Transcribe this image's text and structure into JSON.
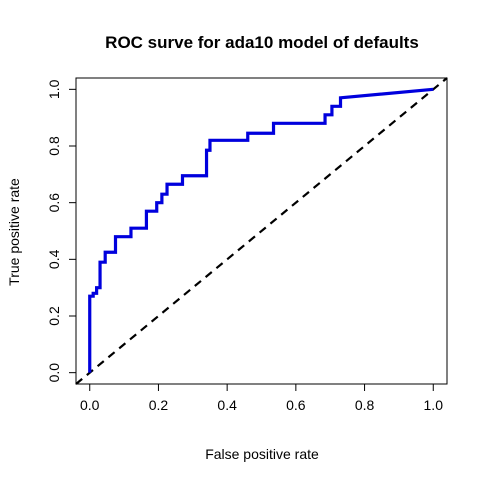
{
  "chart_data": {
    "type": "line",
    "title": "ROC surve for ada10 model of defaults",
    "xlabel": "False positive rate",
    "ylabel": "True positive rate",
    "xlim": [
      -0.04,
      1.04
    ],
    "ylim": [
      -0.04,
      1.04
    ],
    "x_ticks": [
      0.0,
      0.2,
      0.4,
      0.6,
      0.8,
      1.0
    ],
    "y_ticks": [
      0.0,
      0.2,
      0.4,
      0.6,
      0.8,
      1.0
    ],
    "x_tick_labels": [
      "0.0",
      "0.2",
      "0.4",
      "0.6",
      "0.8",
      "1.0"
    ],
    "y_tick_labels": [
      "0.0",
      "0.2",
      "0.4",
      "0.6",
      "0.8",
      "1.0"
    ],
    "grid": false,
    "series": [
      {
        "color": "#0000dd",
        "style": "solid",
        "x": [
          0,
          0,
          0.01,
          0.01,
          0.02,
          0.02,
          0.03,
          0.03,
          0.045,
          0.045,
          0.075,
          0.075,
          0.12,
          0.12,
          0.165,
          0.165,
          0.195,
          0.195,
          0.21,
          0.21,
          0.225,
          0.225,
          0.27,
          0.27,
          0.34,
          0.34,
          0.35,
          0.35,
          0.46,
          0.46,
          0.535,
          0.535,
          0.685,
          0.685,
          0.705,
          0.705,
          0.73,
          0.73,
          1.0
        ],
        "y": [
          0,
          0.27,
          0.27,
          0.28,
          0.28,
          0.3,
          0.3,
          0.39,
          0.39,
          0.425,
          0.425,
          0.48,
          0.48,
          0.51,
          0.51,
          0.57,
          0.57,
          0.6,
          0.6,
          0.63,
          0.63,
          0.665,
          0.665,
          0.695,
          0.695,
          0.785,
          0.785,
          0.82,
          0.82,
          0.845,
          0.845,
          0.88,
          0.88,
          0.91,
          0.91,
          0.94,
          0.94,
          0.97,
          1.0
        ]
      },
      {
        "color": "#000000",
        "style": "dashed",
        "x": [
          -0.04,
          1.04
        ],
        "y": [
          -0.04,
          1.04
        ]
      }
    ]
  }
}
